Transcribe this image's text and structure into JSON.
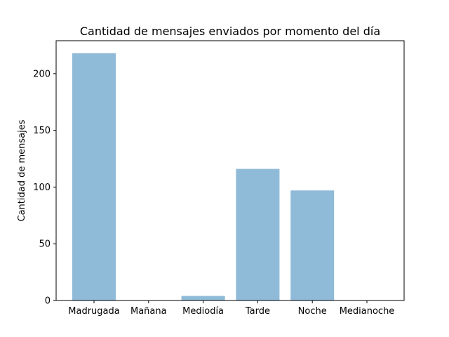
{
  "chart_data": {
    "type": "bar",
    "title": "Cantidad de mensajes enviados por momento del día",
    "xlabel": "",
    "ylabel": "Cantidad de mensajes",
    "categories": [
      "Madrugada",
      "Mañana",
      "Mediodía",
      "Tarde",
      "Noche",
      "Medianoche"
    ],
    "values": [
      218,
      0,
      4,
      116,
      97,
      0
    ],
    "ylim": [
      0,
      229
    ],
    "yticks": [
      0,
      50,
      100,
      150,
      200
    ],
    "grid": false,
    "bar_color": "#8fbad8"
  }
}
